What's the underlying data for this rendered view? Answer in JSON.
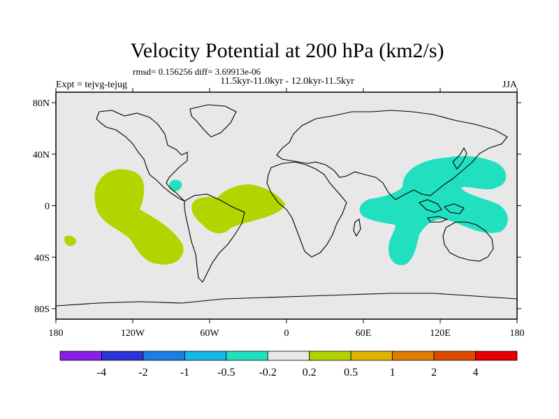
{
  "title": "Velocity Potential at 200 hPa (km2/s)",
  "stats": "rmsd= 0.156256 diff= 3.69913e-06",
  "subtitle": "11.5kyr-11.0kyr - 12.0kyr-11.5kyr",
  "left_label": "Expt = tejvg-tejug",
  "right_label": "JJA",
  "lat_ticks": [
    "80N",
    "40N",
    "0",
    "40S",
    "80S"
  ],
  "lon_ticks": [
    "180",
    "120W",
    "60W",
    "0",
    "60E",
    "120E",
    "180"
  ],
  "colorbar": {
    "labels": [
      "-4",
      "-2",
      "-1",
      "-0.5",
      "-0.2",
      "0.2",
      "0.5",
      "1",
      "2",
      "4"
    ],
    "colors": [
      "#8a1ee8",
      "#2d32d9",
      "#1a7fe0",
      "#14b9e6",
      "#21e0c0",
      "#e8e8e8",
      "#b4d400",
      "#e0b400",
      "#e07d00",
      "#e04a00",
      "#e60000"
    ]
  },
  "colors": {
    "land_background": "#e8e8e8",
    "positive_anomaly": "#b4d400",
    "negative_anomaly": "#21e0c0",
    "coastline": "#000000"
  }
}
